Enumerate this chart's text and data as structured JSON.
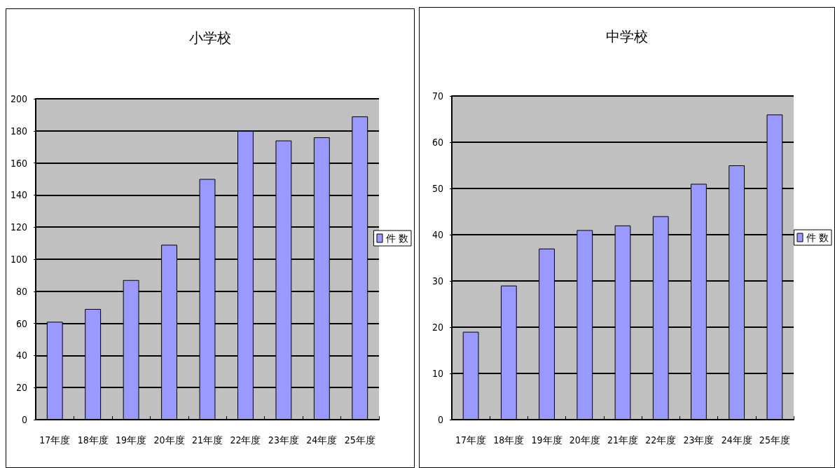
{
  "chart_data": [
    {
      "type": "bar",
      "title": "小学校",
      "categories": [
        "17年度",
        "18年度",
        "19年度",
        "20年度",
        "21年度",
        "22年度",
        "23年度",
        "24年度",
        "25年度"
      ],
      "series": [
        {
          "name": "件 数",
          "color": "#9999ff",
          "values": [
            61,
            69,
            87,
            109,
            150,
            180,
            174,
            176,
            189
          ]
        }
      ],
      "ylim": [
        0,
        200
      ],
      "yticks": [
        0,
        20,
        40,
        60,
        80,
        100,
        120,
        140,
        160,
        180,
        200
      ],
      "grid": "y",
      "legend": "right"
    },
    {
      "type": "bar",
      "title": "中学校",
      "categories": [
        "17年度",
        "18年度",
        "19年度",
        "20年度",
        "21年度",
        "22年度",
        "23年度",
        "24年度",
        "25年度"
      ],
      "series": [
        {
          "name": "件 数",
          "color": "#9999ff",
          "values": [
            19,
            29,
            37,
            41,
            42,
            44,
            51,
            55,
            66
          ]
        }
      ],
      "ylim": [
        0,
        70
      ],
      "yticks": [
        0,
        10,
        20,
        30,
        40,
        50,
        60,
        70
      ],
      "grid": "y",
      "legend": "right"
    }
  ]
}
